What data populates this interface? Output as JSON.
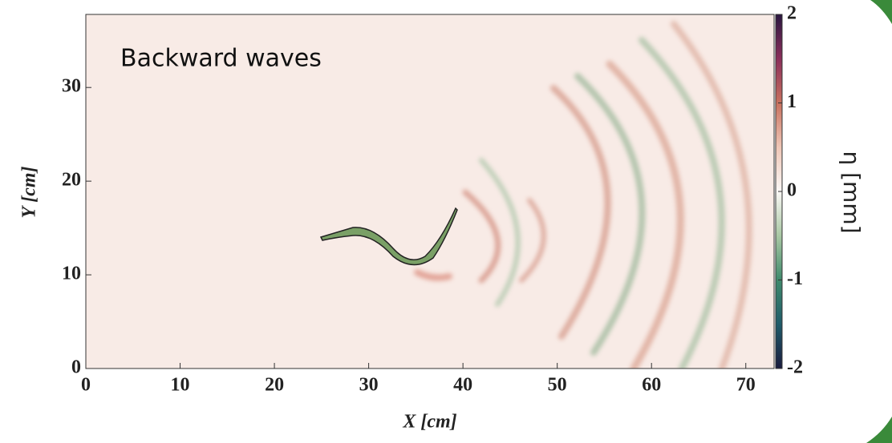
{
  "chart_data": {
    "type": "heatmap",
    "annotation": "Backward waves",
    "xlabel": "X [cm]",
    "ylabel": "Y [cm]",
    "xlim": [
      0,
      73
    ],
    "ylim": [
      0,
      37.8
    ],
    "xticks": [
      0,
      10,
      20,
      30,
      40,
      50,
      60,
      70
    ],
    "yticks": [
      0,
      10,
      20,
      30
    ],
    "colorbar": {
      "label": "η [mm]",
      "lim": [
        -2,
        2
      ],
      "ticks": [
        -2,
        -1,
        0,
        1,
        2
      ],
      "colormap": [
        "#1a1b3e",
        "#1f5b6a",
        "#3f8a6c",
        "#a9c8a4",
        "#fbf8f6",
        "#efc6b6",
        "#c8705e",
        "#8a2e5a",
        "#2a1640"
      ]
    }
  }
}
